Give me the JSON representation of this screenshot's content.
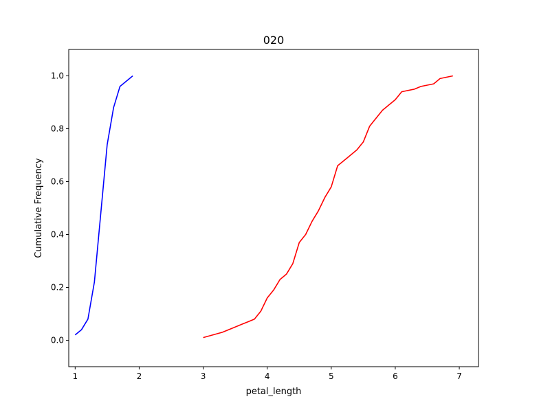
{
  "chart_data": {
    "type": "line",
    "title": "020",
    "xlabel": "petal_length",
    "ylabel": "Cumulative Frequency",
    "xlim": [
      0.9,
      7.3
    ],
    "ylim": [
      -0.1,
      1.1
    ],
    "x_ticks": [
      1,
      2,
      3,
      4,
      5,
      6,
      7
    ],
    "y_ticks": [
      0.0,
      0.2,
      0.4,
      0.6,
      0.8,
      1.0
    ],
    "x_tick_labels": [
      "1",
      "2",
      "3",
      "4",
      "5",
      "6",
      "7"
    ],
    "y_tick_labels": [
      "0.0",
      "0.2",
      "0.4",
      "0.6",
      "0.8",
      "1.0"
    ],
    "grid": false,
    "legend": "none",
    "series": [
      {
        "color": "#0000ff",
        "x": [
          1.0,
          1.1,
          1.2,
          1.3,
          1.4,
          1.5,
          1.6,
          1.7,
          1.9
        ],
        "y": [
          0.02,
          0.04,
          0.08,
          0.22,
          0.48,
          0.74,
          0.88,
          0.96,
          1.0
        ]
      },
      {
        "color": "#ff0000",
        "x": [
          3.0,
          3.3,
          3.5,
          3.6,
          3.7,
          3.8,
          3.9,
          4.0,
          4.1,
          4.2,
          4.3,
          4.4,
          4.5,
          4.6,
          4.7,
          4.8,
          4.9,
          5.0,
          5.1,
          5.2,
          5.3,
          5.4,
          5.5,
          5.6,
          5.7,
          5.8,
          5.9,
          6.0,
          6.1,
          6.3,
          6.4,
          6.6,
          6.7,
          6.9
        ],
        "y": [
          0.01,
          0.03,
          0.05,
          0.06,
          0.07,
          0.08,
          0.11,
          0.16,
          0.19,
          0.23,
          0.25,
          0.29,
          0.37,
          0.4,
          0.45,
          0.49,
          0.54,
          0.58,
          0.66,
          0.68,
          0.7,
          0.72,
          0.75,
          0.81,
          0.84,
          0.87,
          0.89,
          0.91,
          0.94,
          0.95,
          0.96,
          0.97,
          0.99,
          1.0
        ]
      }
    ]
  }
}
